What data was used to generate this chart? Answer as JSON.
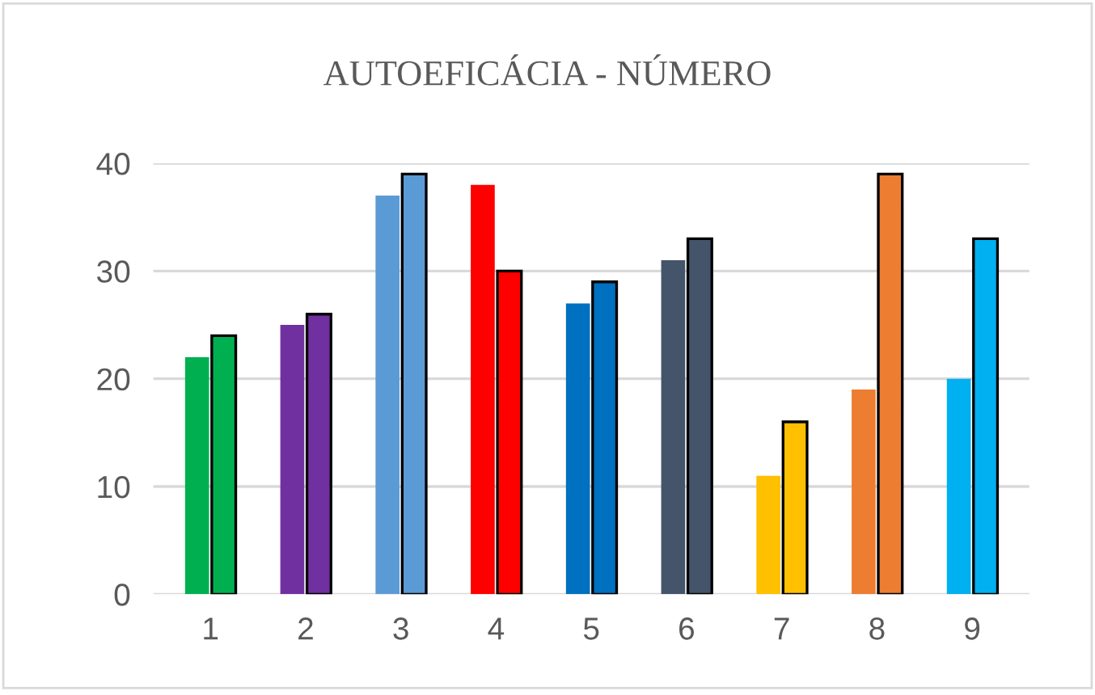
{
  "chart_data": {
    "type": "bar",
    "title": "AUTOEFICÁCIA - NÚMERO",
    "categories": [
      "1",
      "2",
      "3",
      "4",
      "5",
      "6",
      "7",
      "8",
      "9"
    ],
    "series": [
      {
        "colors": [
          "#00b050",
          "#7030a0",
          "#5b9bd5",
          "#ff0000",
          "#0070c0",
          "#44546a",
          "#ffc000",
          "#ed7d31",
          "#00b0f0"
        ],
        "values": [
          22,
          25,
          37,
          38,
          27,
          31,
          11,
          19,
          20
        ]
      },
      {
        "colors": [
          "#00b050",
          "#7030a0",
          "#5b9bd5",
          "#ff0000",
          "#0070c0",
          "#44546a",
          "#ffc000",
          "#ed7d31",
          "#00b0f0"
        ],
        "values": [
          24,
          26,
          39,
          30,
          29,
          33,
          16,
          39,
          33
        ]
      }
    ],
    "ylim": [
      0,
      40
    ],
    "yticks": [
      0,
      10,
      20,
      30,
      40
    ],
    "grid": "y",
    "legend": false
  }
}
